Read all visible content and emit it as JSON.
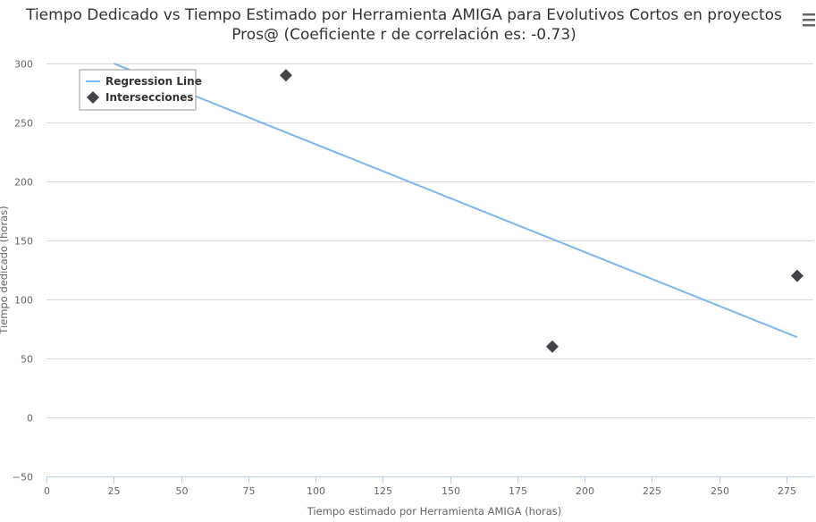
{
  "chart_data": {
    "type": "scatter",
    "title": "Tiempo Dedicado vs Tiempo Estimado por Herramienta AMIGA para Evolutivos Cortos en proyectos Pros@ (Coeficiente r de correlación es: -0.73)",
    "title_lines": [
      "Tiempo Dedicado vs Tiempo Estimado por Herramienta AMIGA para Evolutivos Cortos en proyectos",
      "Pros@ (Coeficiente r de correlación es: -0.73)"
    ],
    "xlabel": "Tiempo estimado por Herramienta AMIGA (horas)",
    "ylabel": "Tiempo dedicado (horas)",
    "xlim": [
      0,
      285
    ],
    "ylim": [
      -50,
      300
    ],
    "xticks": [
      0,
      25,
      50,
      75,
      100,
      125,
      150,
      175,
      200,
      225,
      250,
      275
    ],
    "yticks": [
      -50,
      0,
      50,
      100,
      150,
      200,
      250,
      300
    ],
    "grid": true,
    "legend_position": "top-left",
    "series": [
      {
        "name": "Regression Line",
        "kind": "line",
        "color": "#7cb5ec",
        "x": [
          25,
          279
        ],
        "y": [
          300,
          68
        ]
      },
      {
        "name": "Intersecciones",
        "kind": "scatter",
        "marker": "diamond",
        "color": "#434348",
        "x": [
          89,
          188,
          279
        ],
        "y": [
          290,
          60,
          120
        ]
      }
    ]
  },
  "ui": {
    "menu_icon": "hamburger-menu-icon"
  }
}
